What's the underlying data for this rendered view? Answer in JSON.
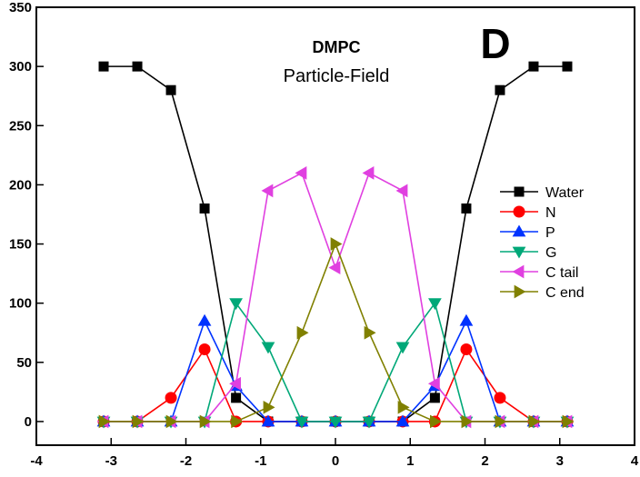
{
  "chart_data": {
    "type": "line",
    "title": "DMPC",
    "subtitle": "Particle-Field",
    "panel_label": "D",
    "xlabel": "",
    "ylabel": "",
    "xlim": [
      -4,
      4
    ],
    "ylim": [
      -20,
      350
    ],
    "xticks": [
      -4,
      -3,
      -2,
      -1,
      0,
      1,
      2,
      3,
      4
    ],
    "yticks": [
      0,
      50,
      100,
      150,
      200,
      250,
      300,
      350
    ],
    "grid": false,
    "legend_position": "right",
    "x": [
      -3.1,
      -2.65,
      -2.2,
      -1.75,
      -1.33,
      -0.9,
      -0.45,
      0,
      0.45,
      0.9,
      1.33,
      1.75,
      2.2,
      2.65,
      3.1
    ],
    "series": [
      {
        "name": "Water",
        "color": "#000000",
        "marker": "square",
        "values": [
          300,
          300,
          280,
          180,
          20,
          0,
          0,
          0,
          0,
          0,
          20,
          180,
          280,
          300,
          300
        ]
      },
      {
        "name": "N",
        "color": "#ff0000",
        "marker": "circle",
        "values": [
          0,
          0,
          20,
          61,
          0,
          0,
          0,
          0,
          0,
          0,
          0,
          61,
          20,
          0,
          0
        ]
      },
      {
        "name": "P",
        "color": "#0033ff",
        "marker": "triangle-up",
        "values": [
          0,
          0,
          0,
          85,
          30,
          0,
          0,
          0,
          0,
          0,
          30,
          85,
          0,
          0,
          0
        ]
      },
      {
        "name": "G",
        "color": "#00a878",
        "marker": "triangle-down",
        "values": [
          0,
          0,
          0,
          0,
          100,
          63,
          0,
          0,
          0,
          63,
          100,
          0,
          0,
          0,
          0
        ]
      },
      {
        "name": "C tail",
        "color": "#e040e0",
        "marker": "triangle-left",
        "values": [
          0,
          0,
          0,
          0,
          32,
          195,
          210,
          130,
          210,
          195,
          32,
          0,
          0,
          0,
          0
        ]
      },
      {
        "name": "C end",
        "color": "#808000",
        "marker": "triangle-right",
        "values": [
          0,
          0,
          0,
          0,
          0,
          12,
          75,
          150,
          75,
          12,
          0,
          0,
          0,
          0,
          0
        ]
      }
    ]
  }
}
